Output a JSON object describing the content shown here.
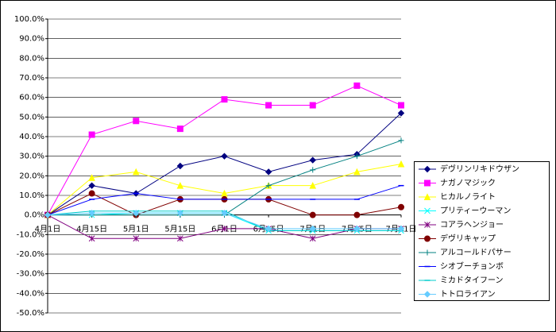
{
  "chart_data": {
    "type": "line",
    "categories": [
      "4月1日",
      "4月15日",
      "5月1日",
      "5月15日",
      "6月1日",
      "6月15日",
      "7月1日",
      "7月15日",
      "7月31日"
    ],
    "series": [
      {
        "name": "デヴリンリキドウザン",
        "color": "#000080",
        "marker": "diamond",
        "values": [
          0,
          15,
          11,
          25,
          30,
          22,
          28,
          31,
          52
        ]
      },
      {
        "name": "ナガノマジック",
        "color": "#ff00ff",
        "marker": "square",
        "values": [
          0,
          41,
          48,
          44,
          59,
          56,
          56,
          66,
          56
        ]
      },
      {
        "name": "ヒカルノライト",
        "color": "#ffff00",
        "marker": "triangle",
        "values": [
          0,
          19,
          22,
          15,
          11,
          15,
          15,
          22,
          26
        ]
      },
      {
        "name": "プリティーウーマン",
        "color": "#00ffff",
        "marker": "x",
        "values": [
          0,
          0,
          1,
          1,
          1,
          -8,
          -8,
          -8,
          -8
        ]
      },
      {
        "name": "コアラヘンジョー",
        "color": "#800080",
        "marker": "star",
        "values": [
          0,
          -12,
          -12,
          -12,
          -7,
          -7,
          -12,
          -7,
          -7
        ]
      },
      {
        "name": "デヴリキャップ",
        "color": "#800000",
        "marker": "circle",
        "values": [
          0,
          11,
          0,
          8,
          8,
          8,
          0,
          0,
          4
        ]
      },
      {
        "name": "アルコールドパサー",
        "color": "#008080",
        "marker": "plus",
        "values": [
          0,
          0,
          0,
          0,
          0,
          15,
          23,
          30,
          38
        ]
      },
      {
        "name": "シオブーチョンボ",
        "color": "#0000ff",
        "marker": "dash",
        "values": [
          0,
          8,
          11,
          8,
          8,
          8,
          8,
          8,
          15
        ]
      },
      {
        "name": "ミカドタイフーン",
        "color": "#00cccc",
        "marker": "dash",
        "values": [
          0,
          2,
          2,
          2,
          2,
          -8,
          -8,
          -8,
          -8
        ]
      },
      {
        "name": "トトロライアン",
        "color": "#66ccff",
        "marker": "diamond",
        "values": [
          0,
          1,
          1,
          1,
          1,
          -7,
          -7,
          -7,
          -7
        ]
      }
    ],
    "ylim": [
      -50,
      100
    ],
    "yticks": [
      {
        "value": -50,
        "label": "-50.0%"
      },
      {
        "value": -40,
        "label": "-40.0%"
      },
      {
        "value": -30,
        "label": "-30.0%"
      },
      {
        "value": -20,
        "label": "-20.0%"
      },
      {
        "value": -10,
        "label": "-10.0%"
      },
      {
        "value": 0,
        "label": "0.0%"
      },
      {
        "value": 10,
        "label": "10.0%"
      },
      {
        "value": 20,
        "label": "20.0%"
      },
      {
        "value": 30,
        "label": "30.0%"
      },
      {
        "value": 40,
        "label": "40.0%"
      },
      {
        "value": 50,
        "label": "50.0%"
      },
      {
        "value": 60,
        "label": "60.0%"
      },
      {
        "value": 70,
        "label": "70.0%"
      },
      {
        "value": 80,
        "label": "80.0%"
      },
      {
        "value": 90,
        "label": "90.0%"
      },
      {
        "value": 100,
        "label": "100.0%"
      }
    ],
    "grid": true,
    "legend": "right"
  }
}
